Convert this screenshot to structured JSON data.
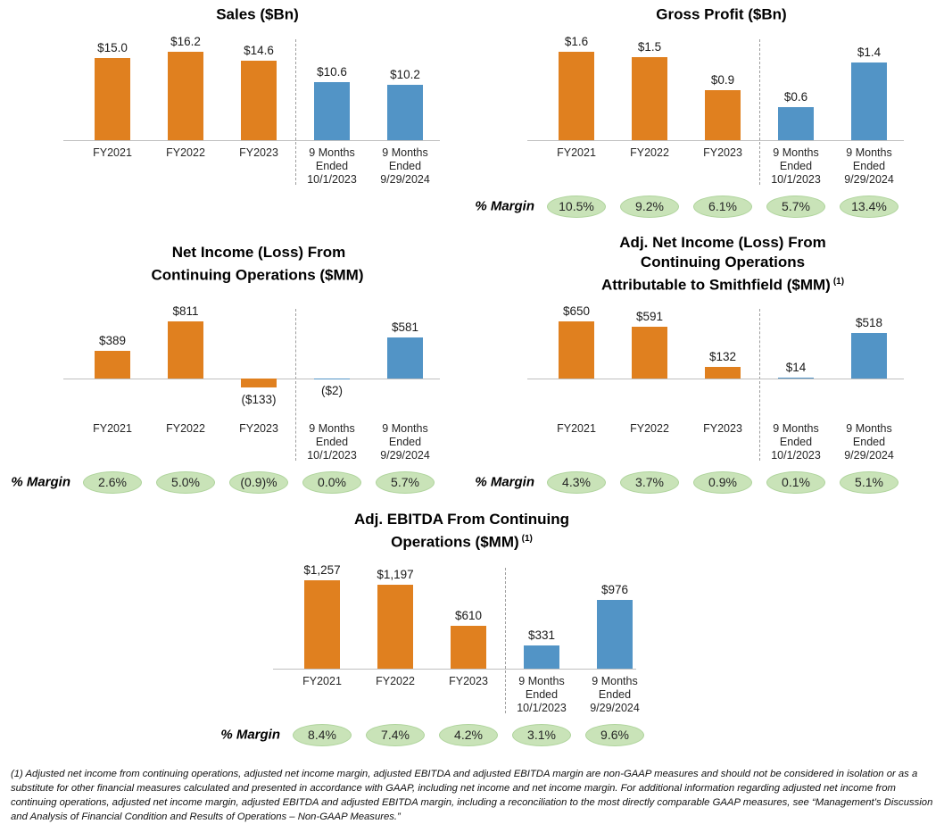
{
  "page": {
    "background": "#FFFFFF"
  },
  "palette": {
    "fiscal_year_bar": "#E0801F",
    "nine_month_bar": "#5294C6",
    "badge_fill": "#C9E3B8",
    "badge_border": "#AFD49C",
    "badge_text": "#262626",
    "axis_line": "#BFBFBF",
    "separator": "#9E9E9E"
  },
  "margin_label": "% Margin",
  "chart_data": [
    {
      "id": "sales",
      "type": "bar",
      "title": "Sales ($Bn)",
      "title_sup": "",
      "categories": [
        "FY2021",
        "FY2022",
        "FY2023",
        "9 Months\nEnded\n10/1/2023",
        "9 Months\nEnded\n9/29/2024"
      ],
      "values": [
        15.0,
        16.2,
        14.6,
        10.6,
        10.2
      ],
      "value_labels": [
        "$15.0",
        "$16.2",
        "$14.6",
        "$10.6",
        "$10.2"
      ],
      "bar_groups": [
        "fiscal_year",
        "fiscal_year",
        "fiscal_year",
        "nine_month",
        "nine_month"
      ],
      "ymax": 16.2,
      "ylim": [
        0,
        16.2
      ],
      "margins": null
    },
    {
      "id": "gross_profit",
      "type": "bar",
      "title": "Gross Profit ($Bn)",
      "title_sup": "",
      "categories": [
        "FY2021",
        "FY2022",
        "FY2023",
        "9 Months\nEnded\n10/1/2023",
        "9 Months\nEnded\n9/29/2024"
      ],
      "values": [
        1.6,
        1.5,
        0.9,
        0.6,
        1.4
      ],
      "value_labels": [
        "$1.6",
        "$1.5",
        "$0.9",
        "$0.6",
        "$1.4"
      ],
      "bar_groups": [
        "fiscal_year",
        "fiscal_year",
        "fiscal_year",
        "nine_month",
        "nine_month"
      ],
      "ymax": 1.6,
      "ylim": [
        0,
        1.6
      ],
      "margins": [
        "10.5%",
        "9.2%",
        "6.1%",
        "5.7%",
        "13.4%"
      ]
    },
    {
      "id": "net_income",
      "type": "bar",
      "title": "Net Income (Loss) From\nContinuing Operations ($MM)",
      "title_sup": "",
      "categories": [
        "FY2021",
        "FY2022",
        "FY2023",
        "9 Months\nEnded\n10/1/2023",
        "9 Months\nEnded\n9/29/2024"
      ],
      "values": [
        389,
        811,
        -133,
        -2,
        581
      ],
      "value_labels": [
        "$389",
        "$811",
        "($133)",
        "($2)",
        "$581"
      ],
      "bar_groups": [
        "fiscal_year",
        "fiscal_year",
        "fiscal_year",
        "nine_month",
        "nine_month"
      ],
      "ymax": 811,
      "ylim": [
        -133,
        811
      ],
      "margins": [
        "2.6%",
        "5.0%",
        "(0.9)%",
        "0.0%",
        "5.7%"
      ]
    },
    {
      "id": "adj_net_income",
      "type": "bar",
      "title": "Adj. Net Income (Loss) From\nContinuing Operations\nAttributable to Smithfield ($MM)",
      "title_sup": "(1)",
      "categories": [
        "FY2021",
        "FY2022",
        "FY2023",
        "9 Months\nEnded\n10/1/2023",
        "9 Months\nEnded\n9/29/2024"
      ],
      "values": [
        650,
        591,
        132,
        14,
        518
      ],
      "value_labels": [
        "$650",
        "$591",
        "$132",
        "$14",
        "$518"
      ],
      "bar_groups": [
        "fiscal_year",
        "fiscal_year",
        "fiscal_year",
        "nine_month",
        "nine_month"
      ],
      "ymax": 650,
      "ylim": [
        0,
        650
      ],
      "margins": [
        "4.3%",
        "3.7%",
        "0.9%",
        "0.1%",
        "5.1%"
      ]
    },
    {
      "id": "adj_ebitda",
      "type": "bar",
      "title": "Adj. EBITDA From Continuing\nOperations ($MM)",
      "title_sup": "(1)",
      "categories": [
        "FY2021",
        "FY2022",
        "FY2023",
        "9 Months\nEnded\n10/1/2023",
        "9 Months\nEnded\n9/29/2024"
      ],
      "values": [
        1257,
        1197,
        610,
        331,
        976
      ],
      "value_labels": [
        "$1,257",
        "$1,197",
        "$610",
        "$331",
        "$976"
      ],
      "bar_groups": [
        "fiscal_year",
        "fiscal_year",
        "fiscal_year",
        "nine_month",
        "nine_month"
      ],
      "ymax": 1257,
      "ylim": [
        0,
        1257
      ],
      "margins": [
        "8.4%",
        "7.4%",
        "4.2%",
        "3.1%",
        "9.6%"
      ]
    }
  ],
  "footnote": "(1) Adjusted net income from continuing operations, adjusted net income margin, adjusted EBITDA and adjusted EBITDA margin are non-GAAP measures and should not be considered in isolation or as a substitute for other financial measures calculated and presented in accordance with GAAP, including net income and net income margin.  For additional information regarding adjusted net income from continuing operations, adjusted net income margin, adjusted EBITDA and adjusted EBITDA margin, including a reconciliation to the most directly comparable GAAP measures, see “Management’s Discussion and Analysis of Financial Condition and Results of Operations – Non-GAAP Measures.”"
}
